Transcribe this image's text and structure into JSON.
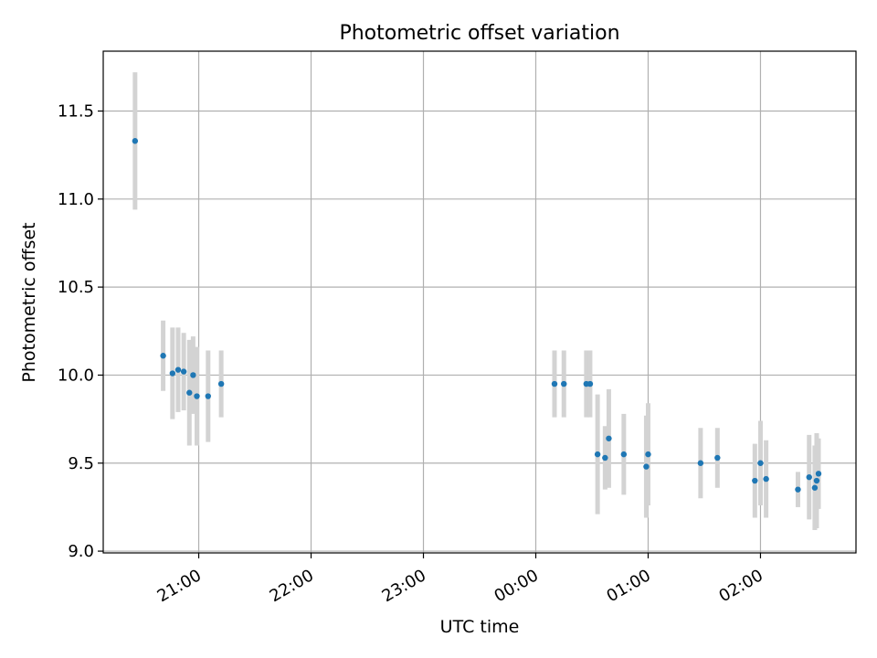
{
  "chart_data": {
    "type": "scatter",
    "title": "Photometric offset variation",
    "xlabel": "UTC time",
    "ylabel": "Photometric offset",
    "xlim": [
      "20:09",
      "02:51"
    ],
    "ylim": [
      8.99,
      11.84
    ],
    "x_ticks": [
      "21:00",
      "22:00",
      "23:00",
      "00:00",
      "01:00",
      "02:00"
    ],
    "y_ticks": [
      "9.0",
      "9.5",
      "10.0",
      "10.5",
      "11.0",
      "11.5"
    ],
    "grid": true,
    "marker_color": "#1f77b4",
    "errorbar_color": "#d3d3d3",
    "points": [
      {
        "x": "20:26",
        "y": 11.33,
        "err": 0.39
      },
      {
        "x": "20:41",
        "y": 10.11,
        "err": 0.2
      },
      {
        "x": "20:46",
        "y": 10.01,
        "err": 0.26
      },
      {
        "x": "20:49",
        "y": 10.03,
        "err": 0.24
      },
      {
        "x": "20:52",
        "y": 10.02,
        "err": 0.22
      },
      {
        "x": "20:55",
        "y": 9.9,
        "err": 0.3
      },
      {
        "x": "20:57",
        "y": 10.0,
        "err": 0.22
      },
      {
        "x": "20:59",
        "y": 9.88,
        "err": 0.28
      },
      {
        "x": "21:05",
        "y": 9.88,
        "err": 0.26
      },
      {
        "x": "21:12",
        "y": 9.95,
        "err": 0.19
      },
      {
        "x": "00:10",
        "y": 9.95,
        "err": 0.19
      },
      {
        "x": "00:15",
        "y": 9.95,
        "err": 0.19
      },
      {
        "x": "00:27",
        "y": 9.95,
        "err": 0.19
      },
      {
        "x": "00:29",
        "y": 9.95,
        "err": 0.19
      },
      {
        "x": "00:33",
        "y": 9.55,
        "err": 0.34
      },
      {
        "x": "00:37",
        "y": 9.53,
        "err": 0.18
      },
      {
        "x": "00:39",
        "y": 9.64,
        "err": 0.28
      },
      {
        "x": "00:47",
        "y": 9.55,
        "err": 0.23
      },
      {
        "x": "00:59",
        "y": 9.48,
        "err": 0.29
      },
      {
        "x": "01:00",
        "y": 9.55,
        "err": 0.29
      },
      {
        "x": "01:28",
        "y": 9.5,
        "err": 0.2
      },
      {
        "x": "01:37",
        "y": 9.53,
        "err": 0.17
      },
      {
        "x": "01:57",
        "y": 9.4,
        "err": 0.21
      },
      {
        "x": "02:00",
        "y": 9.5,
        "err": 0.24
      },
      {
        "x": "02:03",
        "y": 9.41,
        "err": 0.22
      },
      {
        "x": "02:20",
        "y": 9.35,
        "err": 0.1
      },
      {
        "x": "02:26",
        "y": 9.42,
        "err": 0.24
      },
      {
        "x": "02:29",
        "y": 9.36,
        "err": 0.24
      },
      {
        "x": "02:30",
        "y": 9.4,
        "err": 0.27
      },
      {
        "x": "02:31",
        "y": 9.44,
        "err": 0.2
      }
    ]
  }
}
